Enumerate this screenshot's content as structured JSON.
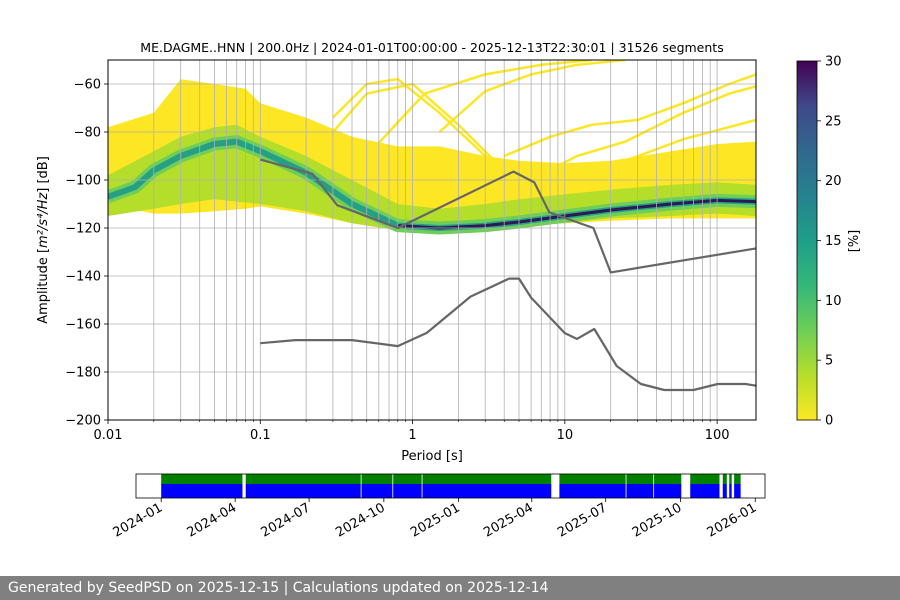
{
  "chart_data": [
    {
      "type": "heatmap",
      "title": "ME.DAGME..HNN | 200.0Hz | 2024-01-01T00:00:00 - 2025-12-13T22:30:01 | 31526 segments",
      "xlabel": "Period [s]",
      "ylabel_prefix": "Amplitude [",
      "ylabel_formula": "m²/s⁴/Hz",
      "ylabel_suffix": "] [dB]",
      "xscale": "log",
      "xlim": [
        0.01,
        180
      ],
      "ylim": [
        -200,
        -50
      ],
      "x_ticks": [
        {
          "value": 0.01,
          "label": "0.01"
        },
        {
          "value": 0.1,
          "label": "0.1"
        },
        {
          "value": 1,
          "label": "1"
        },
        {
          "value": 10,
          "label": "10"
        },
        {
          "value": 100,
          "label": "100"
        }
      ],
      "y_ticks": [
        {
          "value": -60,
          "label": "−60"
        },
        {
          "value": -80,
          "label": "−80"
        },
        {
          "value": -100,
          "label": "−100"
        },
        {
          "value": -120,
          "label": "−120"
        },
        {
          "value": -140,
          "label": "−140"
        },
        {
          "value": -160,
          "label": "−160"
        },
        {
          "value": -180,
          "label": "−180"
        },
        {
          "value": -200,
          "label": "−200"
        }
      ],
      "grid_periods": [
        0.02,
        0.03,
        0.04,
        0.05,
        0.06,
        0.07,
        0.08,
        0.09,
        0.2,
        0.3,
        0.4,
        0.5,
        0.6,
        0.7,
        0.8,
        0.9,
        2,
        3,
        4,
        5,
        6,
        7,
        8,
        9,
        20,
        30,
        40,
        50,
        60,
        70,
        80,
        90
      ],
      "mode_curve": [
        [
          0.01,
          -107
        ],
        [
          0.015,
          -103
        ],
        [
          0.02,
          -96
        ],
        [
          0.03,
          -90
        ],
        [
          0.05,
          -85
        ],
        [
          0.07,
          -84
        ],
        [
          0.1,
          -88
        ],
        [
          0.2,
          -97
        ],
        [
          0.4,
          -110
        ],
        [
          0.8,
          -119
        ],
        [
          1.5,
          -120
        ],
        [
          3,
          -119
        ],
        [
          5,
          -117.5
        ],
        [
          10,
          -115
        ],
        [
          20,
          -112.5
        ],
        [
          50,
          -110
        ],
        [
          100,
          -108.5
        ],
        [
          180,
          -109
        ]
      ],
      "core_bounds": [
        [
          0.01,
          -115,
          -98
        ],
        [
          0.02,
          -112,
          -88
        ],
        [
          0.03,
          -110,
          -82
        ],
        [
          0.05,
          -108,
          -78
        ],
        [
          0.07,
          -109,
          -77
        ],
        [
          0.1,
          -110,
          -82
        ],
        [
          0.2,
          -113,
          -90
        ],
        [
          0.4,
          -118,
          -100
        ],
        [
          0.8,
          -121,
          -110
        ],
        [
          1.5,
          -121,
          -112
        ],
        [
          3,
          -120,
          -110
        ],
        [
          5,
          -119,
          -108
        ],
        [
          10,
          -118,
          -106
        ],
        [
          20,
          -116,
          -104
        ],
        [
          50,
          -115,
          -102
        ],
        [
          100,
          -114,
          -101
        ],
        [
          180,
          -115,
          -102
        ]
      ],
      "outer_bounds": [
        [
          0.01,
          -110,
          -78
        ],
        [
          0.02,
          -114,
          -72
        ],
        [
          0.03,
          -114,
          -58
        ],
        [
          0.05,
          -113,
          -60
        ],
        [
          0.08,
          -112,
          -62
        ],
        [
          0.1,
          -111,
          -68
        ],
        [
          0.2,
          -114,
          -74
        ],
        [
          0.4,
          -118,
          -82
        ],
        [
          0.8,
          -121,
          -86
        ],
        [
          1.5,
          -121,
          -86
        ],
        [
          3,
          -120,
          -90
        ],
        [
          5,
          -119,
          -92
        ],
        [
          10,
          -118,
          -93
        ],
        [
          20,
          -117,
          -92
        ],
        [
          50,
          -116,
          -88
        ],
        [
          100,
          -116,
          -85
        ],
        [
          180,
          -116,
          -84
        ]
      ],
      "rare_curves": [
        [
          [
            0.3,
            -74
          ],
          [
            0.5,
            -60
          ],
          [
            0.8,
            -58
          ],
          [
            1.5,
            -72
          ],
          [
            3,
            -90
          ],
          [
            5,
            -97
          ]
        ],
        [
          [
            0.3,
            -80
          ],
          [
            0.5,
            -64
          ],
          [
            1,
            -60
          ],
          [
            2,
            -77
          ],
          [
            4,
            -96
          ]
        ],
        [
          [
            0.5,
            -90
          ],
          [
            0.8,
            -76
          ],
          [
            1.2,
            -64
          ],
          [
            3,
            -56
          ],
          [
            7,
            -52
          ],
          [
            15,
            -50
          ]
        ],
        [
          [
            1.5,
            -80
          ],
          [
            3,
            -63
          ],
          [
            6,
            -56
          ],
          [
            12,
            -52
          ],
          [
            25,
            -50
          ]
        ],
        [
          [
            4,
            -90
          ],
          [
            8,
            -82
          ],
          [
            15,
            -77
          ],
          [
            30,
            -75
          ],
          [
            60,
            -68
          ],
          [
            120,
            -60
          ],
          [
            180,
            -56
          ]
        ],
        [
          [
            6,
            -100
          ],
          [
            12,
            -90
          ],
          [
            25,
            -84
          ],
          [
            60,
            -72
          ],
          [
            120,
            -64
          ],
          [
            180,
            -61
          ]
        ],
        [
          [
            10,
            -98
          ],
          [
            25,
            -92
          ],
          [
            60,
            -83
          ],
          [
            180,
            -75
          ]
        ]
      ],
      "reference_curves": [
        {
          "name": "high-noise-model",
          "points": [
            [
              0.1,
              -91.5
            ],
            [
              0.22,
              -97.4
            ],
            [
              0.32,
              -110.5
            ],
            [
              0.8,
              -120
            ],
            [
              4.6,
              -96.5
            ],
            [
              6.3,
              -101
            ],
            [
              7.9,
              -113.5
            ],
            [
              15.4,
              -120
            ],
            [
              20,
              -138.5
            ],
            [
              180,
              -128.5
            ]
          ]
        },
        {
          "name": "low-noise-model",
          "points": [
            [
              0.1,
              -168
            ],
            [
              0.17,
              -166.7
            ],
            [
              0.4,
              -166.7
            ],
            [
              0.8,
              -169.2
            ],
            [
              1.24,
              -163.7
            ],
            [
              2.4,
              -148.6
            ],
            [
              4.3,
              -141.1
            ],
            [
              5,
              -141.1
            ],
            [
              6,
              -149
            ],
            [
              10,
              -163.8
            ],
            [
              12,
              -166.2
            ],
            [
              15.6,
              -162.1
            ],
            [
              21.9,
              -177.5
            ],
            [
              31.6,
              -185
            ],
            [
              45,
              -187.5
            ],
            [
              70,
              -187.5
            ],
            [
              101,
              -185
            ],
            [
              154,
              -185
            ],
            [
              180,
              -185.7
            ]
          ]
        }
      ]
    },
    {
      "type": "colorbar",
      "label": "[%]",
      "range": [
        0,
        30
      ],
      "ticks": [
        {
          "value": 0,
          "label": "0"
        },
        {
          "value": 5,
          "label": "5"
        },
        {
          "value": 10,
          "label": "10"
        },
        {
          "value": 15,
          "label": "15"
        },
        {
          "value": 20,
          "label": "20"
        },
        {
          "value": 25,
          "label": "25"
        },
        {
          "value": 30,
          "label": "30"
        }
      ]
    },
    {
      "type": "timeline",
      "range": [
        "2023-12-01",
        "2026-01-13"
      ],
      "data_start": "2024-01-01",
      "data_end": "2025-12-14",
      "colors": {
        "processed": "#008000",
        "available": "#0000ff"
      },
      "gaps": [
        [
          "2024-04-10",
          "2024-04-14"
        ],
        [
          "2025-04-25",
          "2025-05-05"
        ],
        [
          "2025-10-02",
          "2025-10-13"
        ],
        [
          "2025-11-18",
          "2025-11-22"
        ],
        [
          "2025-11-27",
          "2025-11-30"
        ],
        [
          "2025-12-03",
          "2025-12-06"
        ]
      ],
      "thin_gaps": [
        "2024-09-03",
        "2024-10-12",
        "2024-11-17",
        "2025-07-26",
        "2025-08-29"
      ],
      "ticks": [
        {
          "date": "2024-01-01",
          "label": "2024-01"
        },
        {
          "date": "2024-04-01",
          "label": "2024-04"
        },
        {
          "date": "2024-07-01",
          "label": "2024-07"
        },
        {
          "date": "2024-10-01",
          "label": "2024-10"
        },
        {
          "date": "2025-01-01",
          "label": "2025-01"
        },
        {
          "date": "2025-04-01",
          "label": "2025-04"
        },
        {
          "date": "2025-07-01",
          "label": "2025-07"
        },
        {
          "date": "2025-10-01",
          "label": "2025-10"
        },
        {
          "date": "2026-01-01",
          "label": "2026-01"
        }
      ]
    }
  ],
  "footer": {
    "text": "Generated by SeedPSD on 2025-12-15 | Calculations updated on 2025-12-14"
  }
}
